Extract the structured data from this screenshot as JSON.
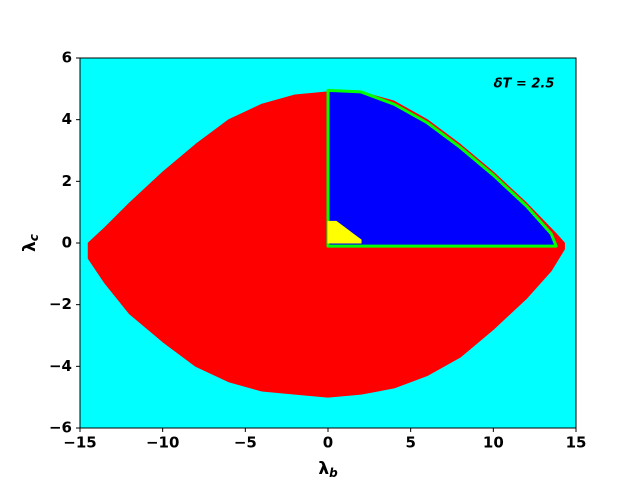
{
  "chart_data": {
    "type": "region",
    "background": "#00ffff",
    "xlabel": {
      "symbol": "λ",
      "subscript": "b"
    },
    "ylabel": {
      "symbol": "λ",
      "subscript": "c"
    },
    "annotation": "δT = 2.5",
    "xlim": [
      -15,
      15
    ],
    "ylim": [
      -6,
      6
    ],
    "xticks": [
      {
        "value": -15,
        "label": "−15"
      },
      {
        "value": -10,
        "label": "−10"
      },
      {
        "value": -5,
        "label": "−5"
      },
      0,
      5,
      10,
      15
    ],
    "yticks": [
      {
        "value": -6,
        "label": "−6"
      },
      {
        "value": -4,
        "label": "−4"
      },
      {
        "value": -2,
        "label": "−2"
      },
      0,
      2,
      4,
      6
    ],
    "regions": [
      {
        "color": "#ff0000",
        "x": [
          0,
          -2,
          -4,
          -6,
          -8,
          -10,
          -12,
          -13.5,
          -14.5,
          -14.5,
          -13.5,
          -12,
          -10,
          -8,
          -6,
          -4,
          -2,
          0,
          2,
          4,
          6,
          8,
          10,
          12,
          13.5,
          14.3,
          14.3,
          13.8,
          12,
          10,
          8,
          6,
          4,
          2
        ],
        "y": [
          4.9,
          4.8,
          4.5,
          4.0,
          3.2,
          2.3,
          1.3,
          0.5,
          0,
          -0.5,
          -1.3,
          -2.3,
          -3.2,
          -4.0,
          -4.5,
          -4.8,
          -4.9,
          -5,
          -4.9,
          -4.7,
          -4.3,
          -3.7,
          -2.8,
          -1.8,
          -0.9,
          -0.2,
          0,
          0.3,
          1.3,
          2.3,
          3.2,
          4.0,
          4.6,
          4.9
        ]
      },
      {
        "color": "#0000ff",
        "edge_color": "#00ff00",
        "x": [
          0,
          0,
          2,
          4,
          6,
          8,
          10,
          12,
          13.5,
          13.8
        ],
        "y": [
          -0.1,
          4.95,
          4.9,
          4.5,
          3.9,
          3.1,
          2.2,
          1.2,
          0.3,
          -0.1
        ]
      },
      {
        "color": "#ffff00",
        "x": [
          0,
          0,
          0.5,
          1,
          1.5,
          2,
          2
        ],
        "y": [
          0,
          0.7,
          0.7,
          0.5,
          0.3,
          0.1,
          0
        ]
      }
    ]
  }
}
